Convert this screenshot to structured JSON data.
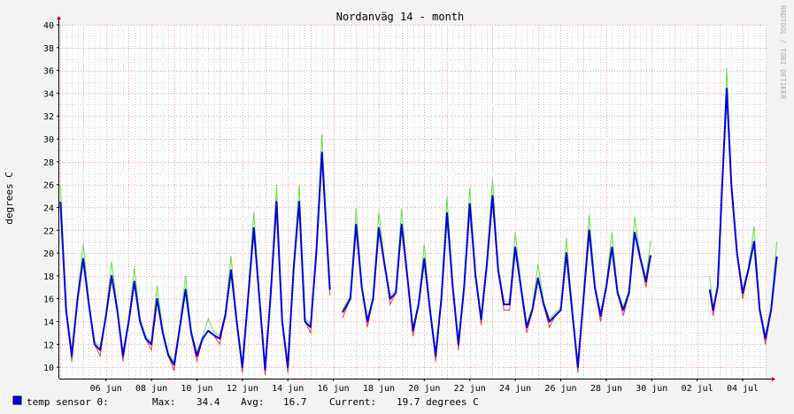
{
  "watermark": "RRDTOOL / TOBI OETIKER",
  "legend": {
    "label": "temp sensor 0:",
    "max_label": "Max:",
    "max_value": "34.4",
    "avg_label": "Avg:",
    "avg_value": "16.7",
    "current_label": "Current:",
    "current_value": "19.7 degrees C"
  },
  "colors": {
    "background": "#f3f3f3",
    "plot_bg": "#ffffff",
    "major_grid": "#e89a9a",
    "minor_grid": "#d0d0d0",
    "max_series": "#66dd44",
    "avg_series": "#0000dd",
    "min_series": "#ee3333",
    "legend_swatch": "#0000ff",
    "axis": "#c00000"
  },
  "chart_data": {
    "type": "line",
    "title": "Nordanväg 14 - month",
    "xlabel": "",
    "ylabel": "degrees C",
    "xlim": [
      3.95,
      35.05
    ],
    "ylim": [
      9,
      40
    ],
    "y_ticks": [
      10,
      12,
      14,
      16,
      18,
      20,
      22,
      24,
      26,
      28,
      30,
      32,
      34,
      36,
      38,
      40
    ],
    "x_ticks": [
      {
        "day": 6,
        "label": "06 jun"
      },
      {
        "day": 8,
        "label": "08 jun"
      },
      {
        "day": 10,
        "label": "10 jun"
      },
      {
        "day": 12,
        "label": "12 jun"
      },
      {
        "day": 14,
        "label": "14 jun"
      },
      {
        "day": 16,
        "label": "16 jun"
      },
      {
        "day": 18,
        "label": "18 jun"
      },
      {
        "day": 20,
        "label": "20 jun"
      },
      {
        "day": 22,
        "label": "22 jun"
      },
      {
        "day": 24,
        "label": "24 jun"
      },
      {
        "day": 26,
        "label": "26 jun"
      },
      {
        "day": 28,
        "label": "28 jun"
      },
      {
        "day": 30,
        "label": "30 jun"
      },
      {
        "day": 32,
        "label": "02 jul"
      },
      {
        "day": 34,
        "label": "04 jul"
      }
    ],
    "grid": true,
    "legend_position": "bottom-left",
    "series": [
      {
        "name": "temp sensor 0:",
        "color": "#0000dd",
        "points": [
          [
            4.0,
            24.5
          ],
          [
            4.25,
            15.0
          ],
          [
            4.5,
            11.0
          ],
          [
            4.75,
            16.0
          ],
          [
            5.0,
            19.5
          ],
          [
            5.25,
            15.5
          ],
          [
            5.5,
            12.0
          ],
          [
            5.75,
            11.5
          ],
          [
            6.0,
            14.5
          ],
          [
            6.25,
            18.0
          ],
          [
            6.5,
            15.0
          ],
          [
            6.75,
            11.0
          ],
          [
            7.0,
            14.0
          ],
          [
            7.25,
            17.5
          ],
          [
            7.5,
            14.0
          ],
          [
            7.75,
            12.5
          ],
          [
            8.0,
            12.0
          ],
          [
            8.25,
            16.0
          ],
          [
            8.5,
            13.0
          ],
          [
            8.75,
            11.0
          ],
          [
            9.0,
            10.2
          ],
          [
            9.25,
            13.5
          ],
          [
            9.5,
            16.8
          ],
          [
            9.75,
            13.0
          ],
          [
            10.0,
            11.0
          ],
          [
            10.25,
            12.5
          ],
          [
            10.5,
            13.2
          ],
          [
            10.75,
            12.8
          ],
          [
            11.0,
            12.5
          ],
          [
            11.25,
            14.5
          ],
          [
            11.5,
            18.5
          ],
          [
            11.75,
            14.0
          ],
          [
            12.0,
            10.0
          ],
          [
            12.25,
            16.0
          ],
          [
            12.5,
            22.2
          ],
          [
            12.75,
            16.0
          ],
          [
            13.0,
            9.8
          ],
          [
            13.25,
            16.5
          ],
          [
            13.5,
            24.5
          ],
          [
            13.75,
            14.0
          ],
          [
            14.0,
            10.0
          ],
          [
            14.25,
            18.5
          ],
          [
            14.5,
            24.5
          ],
          [
            14.75,
            14.0
          ],
          [
            15.0,
            13.5
          ],
          [
            15.25,
            20.0
          ],
          [
            15.5,
            28.8
          ],
          [
            15.75,
            20.0
          ],
          [
            15.85,
            16.8
          ]
        ]
      },
      {
        "name": "temp sensor 0:",
        "color": "#0000dd",
        "points": [
          [
            16.4,
            14.8
          ],
          [
            16.75,
            16.0
          ],
          [
            17.0,
            22.5
          ],
          [
            17.25,
            17.0
          ],
          [
            17.5,
            14.0
          ],
          [
            17.75,
            16.0
          ],
          [
            18.0,
            22.2
          ],
          [
            18.25,
            19.0
          ],
          [
            18.5,
            16.0
          ],
          [
            18.75,
            16.5
          ],
          [
            19.0,
            22.5
          ],
          [
            19.25,
            18.0
          ],
          [
            19.5,
            13.2
          ],
          [
            19.75,
            15.5
          ],
          [
            20.0,
            19.5
          ],
          [
            20.25,
            15.0
          ],
          [
            20.5,
            11.0
          ],
          [
            20.75,
            16.0
          ],
          [
            21.0,
            23.5
          ],
          [
            21.25,
            17.0
          ],
          [
            21.5,
            12.0
          ],
          [
            21.75,
            17.0
          ],
          [
            22.0,
            24.3
          ],
          [
            22.25,
            18.0
          ],
          [
            22.5,
            14.2
          ],
          [
            22.75,
            19.0
          ],
          [
            23.0,
            25.0
          ],
          [
            23.25,
            18.5
          ],
          [
            23.5,
            15.5
          ],
          [
            23.75,
            15.5
          ],
          [
            24.0,
            20.5
          ],
          [
            24.25,
            17.0
          ],
          [
            24.5,
            13.5
          ],
          [
            24.75,
            15.0
          ],
          [
            25.0,
            17.8
          ],
          [
            25.25,
            15.5
          ],
          [
            25.5,
            14.0
          ],
          [
            25.75,
            14.5
          ],
          [
            26.0,
            15.0
          ],
          [
            26.25,
            20.0
          ],
          [
            26.5,
            15.0
          ],
          [
            26.75,
            10.0
          ],
          [
            27.0,
            16.0
          ],
          [
            27.25,
            22.0
          ],
          [
            27.5,
            17.0
          ],
          [
            27.75,
            14.5
          ],
          [
            28.0,
            17.0
          ],
          [
            28.25,
            20.5
          ],
          [
            28.5,
            16.5
          ],
          [
            28.75,
            15.0
          ],
          [
            29.0,
            16.5
          ],
          [
            29.25,
            21.8
          ],
          [
            29.5,
            19.5
          ],
          [
            29.75,
            17.5
          ],
          [
            29.95,
            19.8
          ]
        ]
      },
      {
        "name": "temp sensor 0:",
        "color": "#0000dd",
        "points": [
          [
            32.55,
            16.8
          ],
          [
            32.7,
            15.0
          ],
          [
            32.9,
            17.0
          ],
          [
            33.1,
            26.0
          ],
          [
            33.3,
            34.4
          ],
          [
            33.5,
            26.0
          ],
          [
            33.75,
            20.0
          ],
          [
            34.0,
            16.5
          ],
          [
            34.25,
            18.5
          ],
          [
            34.5,
            21.0
          ],
          [
            34.75,
            15.0
          ],
          [
            35.0,
            12.5
          ],
          [
            35.25,
            15.0
          ],
          [
            35.5,
            19.7
          ]
        ]
      }
    ]
  }
}
